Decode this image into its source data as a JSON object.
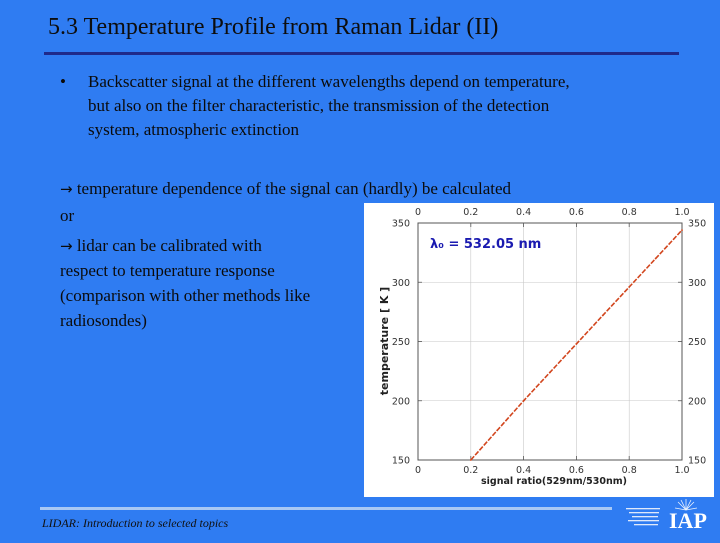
{
  "slide": {
    "title": "5.3 Temperature Profile from Raman Lidar (II)",
    "bullet_symbol": "•",
    "bullet_lines": [
      "Backscatter signal at the different wavelengths depend on temperature,",
      "but also on the filter characteristic, the transmission of the detection",
      "system, atmospheric extinction"
    ],
    "arrow_symbol": "→",
    "arrow_line_1": " temperature dependence of the signal can (hardly) be calculated",
    "or_text": "or",
    "arrow_line_2": " lidar can be calibrated with",
    "body_lines": [
      "respect to temperature response",
      "(comparison with other methods like",
      "radiosondes)"
    ],
    "footer": "LIDAR: Introduction to selected topics",
    "logo_text": "IAP"
  },
  "colors": {
    "background": "#2f7cf2",
    "title_rule": "#1f2a8a",
    "curve": "#d2461e",
    "annotation": "#1a1ab0"
  },
  "chart_data": {
    "type": "line",
    "title": "",
    "annotation": "λ₀ = 532.05 nm",
    "xlabel": "signal ratio(529nm/530nm)",
    "ylabel": "temperature [ K ]",
    "xlim": [
      0,
      1.0
    ],
    "ylim": [
      150,
      350
    ],
    "x_ticks": [
      "0",
      "0.2",
      "0.4",
      "0.6",
      "0.8",
      "1.0"
    ],
    "y_ticks": [
      "350",
      "300",
      "250",
      "200",
      "150"
    ],
    "grid": true,
    "series": [
      {
        "x": [
          0.2,
          0.3,
          0.4,
          0.5,
          0.6,
          0.7,
          0.8,
          0.9,
          1.0
        ],
        "y": [
          150,
          175,
          200,
          224,
          248,
          272,
          296,
          320,
          344
        ]
      }
    ]
  }
}
